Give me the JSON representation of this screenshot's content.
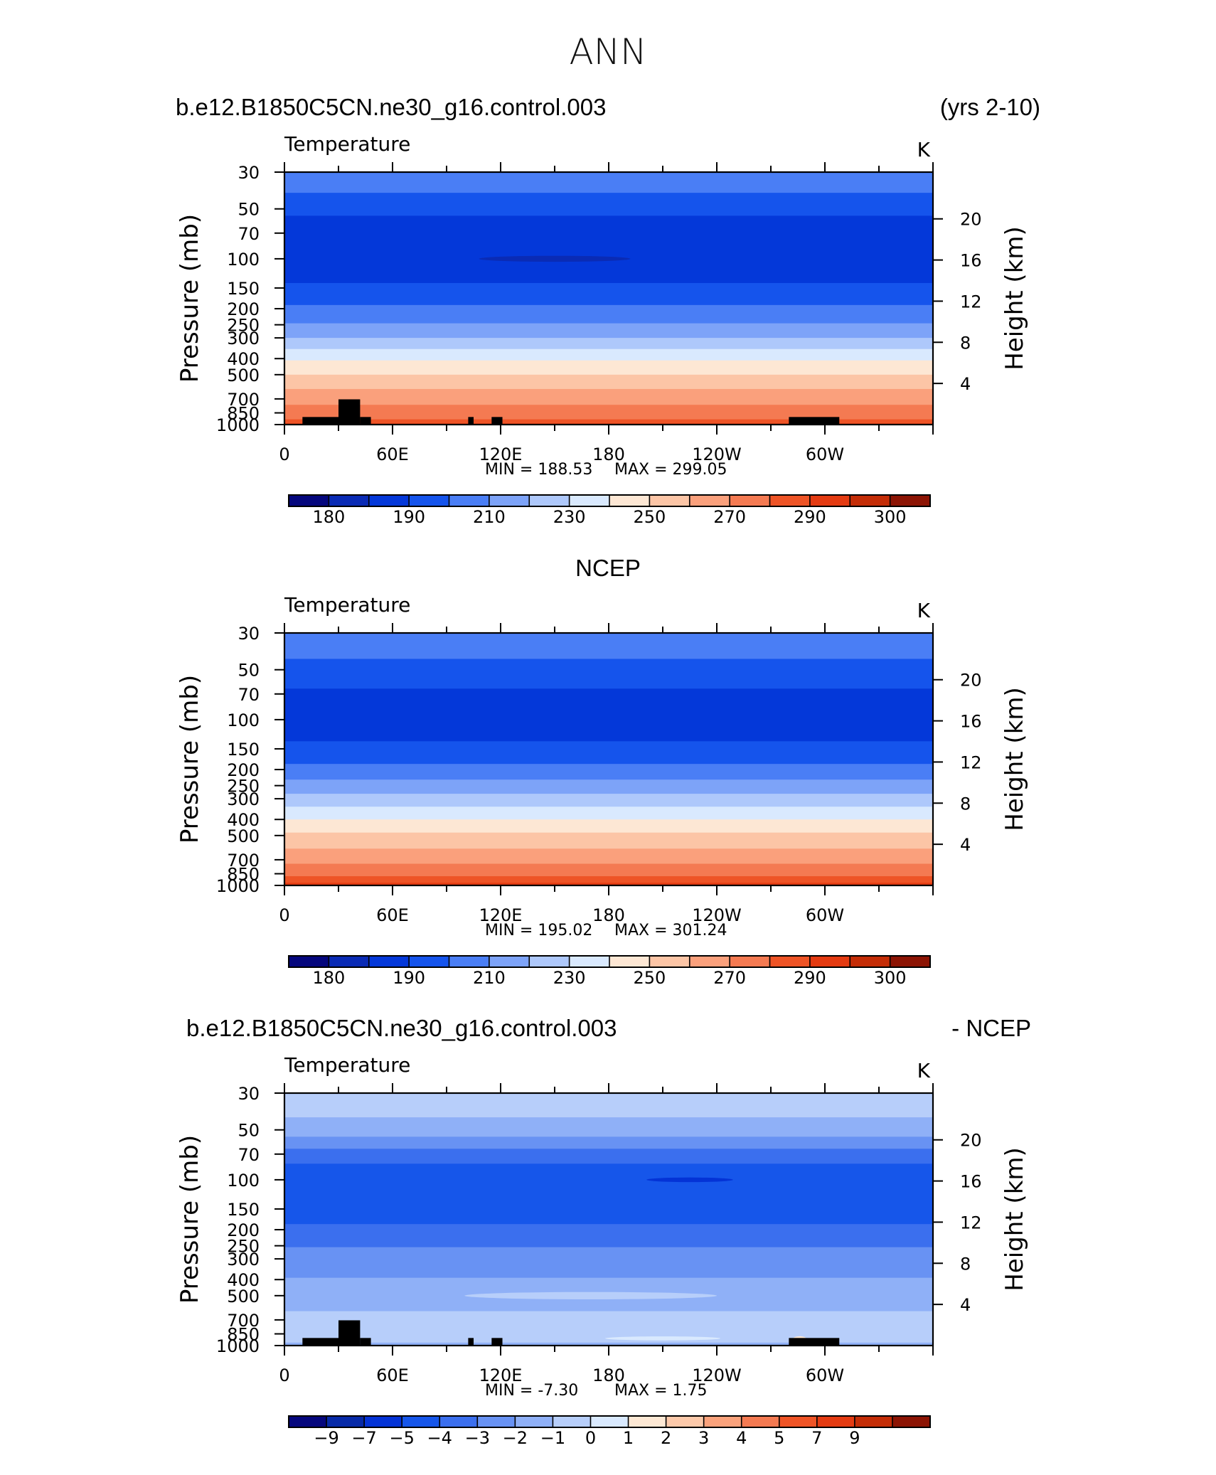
{
  "title": "ANN",
  "chart_data": [
    {
      "type": "contour",
      "case_label": "b.e12.B1850C5CN.ne30_g16.control.003",
      "years_label": "(yrs 2-10)",
      "field": "Temperature",
      "units": "K",
      "ylabel": "Pressure (mb)",
      "ylabel_right": "Height (km)",
      "pressure_ticks": [
        30,
        50,
        70,
        100,
        150,
        200,
        250,
        300,
        400,
        500,
        700,
        850,
        1000
      ],
      "height_ticks": [
        20,
        16,
        12,
        8,
        4
      ],
      "x_ticks": [
        "0",
        "60E",
        "120E",
        "180",
        "120W",
        "60W"
      ],
      "xlim": [
        0,
        360
      ],
      "min_label": "MIN = 188.53",
      "max_label": "MAX = 299.05",
      "min": 188.53,
      "max": 299.05,
      "levels": [
        180,
        185,
        190,
        200,
        210,
        220,
        230,
        240,
        250,
        260,
        270,
        280,
        290,
        295,
        300
      ],
      "colorbar_labels": [
        "180",
        "190",
        "210",
        "230",
        "250",
        "270",
        "290",
        "300"
      ],
      "bands": [
        {
          "p": 30,
          "color_index": 4
        },
        {
          "p": 40,
          "color_index": 3
        },
        {
          "p": 55,
          "color_index": 2
        },
        {
          "p": 140,
          "color_index": 3
        },
        {
          "p": 190,
          "color_index": 4
        },
        {
          "p": 245,
          "color_index": 5
        },
        {
          "p": 300,
          "color_index": 6
        },
        {
          "p": 350,
          "color_index": 7
        },
        {
          "p": 410,
          "color_index": 8
        },
        {
          "p": 500,
          "color_index": 9
        },
        {
          "p": 610,
          "color_index": 10
        },
        {
          "p": 760,
          "color_index": 11
        },
        {
          "p": 930,
          "color_index": 12
        },
        {
          "p": 985,
          "color_index": 13
        }
      ],
      "blobs": [
        {
          "lon": 150,
          "p": 100,
          "dlon": 42,
          "dp_log": 0.018,
          "color_index": 1
        }
      ],
      "topography": [
        [
          10,
          30,
          0.03
        ],
        [
          30,
          42,
          0.1
        ],
        [
          42,
          48,
          0.03
        ],
        [
          102,
          105,
          0.03
        ],
        [
          115,
          121,
          0.03
        ],
        [
          280,
          308,
          0.03
        ]
      ]
    },
    {
      "type": "contour",
      "case_label": "NCEP",
      "field": "Temperature",
      "units": "K",
      "ylabel": "Pressure (mb)",
      "ylabel_right": "Height (km)",
      "pressure_ticks": [
        30,
        50,
        70,
        100,
        150,
        200,
        250,
        300,
        400,
        500,
        700,
        850,
        1000
      ],
      "height_ticks": [
        20,
        16,
        12,
        8,
        4
      ],
      "x_ticks": [
        "0",
        "60E",
        "120E",
        "180",
        "120W",
        "60W"
      ],
      "xlim": [
        0,
        360
      ],
      "min_label": "MIN = 195.02",
      "max_label": "MAX = 301.24",
      "min": 195.02,
      "max": 301.24,
      "levels": [
        180,
        185,
        190,
        200,
        210,
        220,
        230,
        240,
        250,
        260,
        270,
        280,
        290,
        295,
        300
      ],
      "colorbar_labels": [
        "180",
        "190",
        "210",
        "230",
        "250",
        "270",
        "290",
        "300"
      ],
      "bands": [
        {
          "p": 30,
          "color_index": 4
        },
        {
          "p": 43,
          "color_index": 3
        },
        {
          "p": 65,
          "color_index": 2
        },
        {
          "p": 135,
          "color_index": 3
        },
        {
          "p": 185,
          "color_index": 4
        },
        {
          "p": 230,
          "color_index": 5
        },
        {
          "p": 280,
          "color_index": 6
        },
        {
          "p": 335,
          "color_index": 7
        },
        {
          "p": 400,
          "color_index": 8
        },
        {
          "p": 480,
          "color_index": 9
        },
        {
          "p": 600,
          "color_index": 10
        },
        {
          "p": 740,
          "color_index": 11
        },
        {
          "p": 880,
          "color_index": 12
        },
        {
          "p": 965,
          "color_index": 13
        }
      ],
      "blobs": [],
      "topography": []
    },
    {
      "type": "contour",
      "case_label": "b.e12.B1850C5CN.ne30_g16.control.003",
      "years_label": "- NCEP",
      "field": "Temperature",
      "units": "K",
      "ylabel": "Pressure (mb)",
      "ylabel_right": "Height (km)",
      "pressure_ticks": [
        30,
        50,
        70,
        100,
        150,
        200,
        250,
        300,
        400,
        500,
        700,
        850,
        1000
      ],
      "height_ticks": [
        20,
        16,
        12,
        8,
        4
      ],
      "x_ticks": [
        "0",
        "60E",
        "120E",
        "180",
        "120W",
        "60W"
      ],
      "xlim": [
        0,
        360
      ],
      "min_label": "MIN = -7.30",
      "max_label": "MAX = 1.75",
      "min": -7.3,
      "max": 1.75,
      "levels": [
        -9,
        -8,
        -7,
        -6,
        -5,
        -4,
        -3,
        -2,
        -1,
        0,
        1,
        2,
        3,
        4,
        5,
        7,
        9
      ],
      "colorbar_labels": [
        "-9",
        "-7",
        "-5",
        "-4",
        "-3",
        "-2",
        "-1",
        "0",
        "1",
        "2",
        "3",
        "4",
        "5",
        "7",
        "9"
      ],
      "bands": [
        {
          "p": 30,
          "color_index": 7
        },
        {
          "p": 42,
          "color_index": 6
        },
        {
          "p": 55,
          "color_index": 5
        },
        {
          "p": 65,
          "color_index": 4
        },
        {
          "p": 80,
          "color_index": 3
        },
        {
          "p": 185,
          "color_index": 4
        },
        {
          "p": 255,
          "color_index": 5
        },
        {
          "p": 390,
          "color_index": 6
        },
        {
          "p": 620,
          "color_index": 7
        },
        {
          "p": 960,
          "color_index": 6
        }
      ],
      "blobs": [
        {
          "lon": 225,
          "p": 100,
          "dlon": 24,
          "dp_log": 0.014,
          "color_index": 2
        },
        {
          "lon": 170,
          "p": 500,
          "dlon": 70,
          "dp_log": 0.022,
          "color_index": 7
        },
        {
          "lon": 210,
          "p": 905,
          "dlon": 32,
          "dp_log": 0.012,
          "color_index": 8
        },
        {
          "lon": 286,
          "p": 920,
          "dlon": 4,
          "dp_log": 0.02,
          "color_index": 9
        }
      ],
      "topography": [
        [
          10,
          30,
          0.03
        ],
        [
          30,
          42,
          0.1
        ],
        [
          42,
          48,
          0.03
        ],
        [
          102,
          105,
          0.03
        ],
        [
          115,
          121,
          0.03
        ],
        [
          280,
          308,
          0.03
        ]
      ]
    }
  ],
  "colors": {
    "temperature_palette": [
      "#05077d",
      "#0a2bb5",
      "#0438d9",
      "#1554ec",
      "#4a7ef5",
      "#7da3f8",
      "#aec8fb",
      "#d9e9fe",
      "#fde7d4",
      "#fcc5a6",
      "#faa07c",
      "#f47a52",
      "#ee5426",
      "#e43b12",
      "#c42d07",
      "#8c1404"
    ],
    "difference_palette": [
      "#05077d",
      "#072aa8",
      "#0433d6",
      "#1656ea",
      "#3b6fee",
      "#6892f3",
      "#8fb0f7",
      "#b7cefa",
      "#d9e9fe",
      "#fde8d4",
      "#fcc9aa",
      "#faa27c",
      "#f47a52",
      "#ef5426",
      "#e43b12",
      "#c42d07",
      "#8c1404"
    ]
  }
}
